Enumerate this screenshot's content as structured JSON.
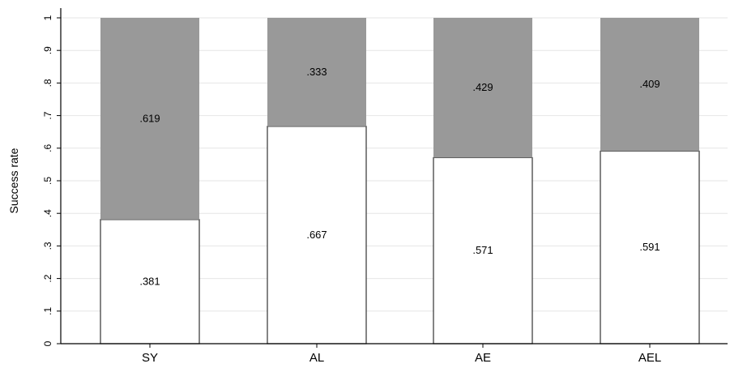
{
  "chart_data": {
    "type": "bar",
    "stacked": true,
    "categories": [
      "SY",
      "AL",
      "AE",
      "AEL"
    ],
    "series": [
      {
        "values": [
          0.381,
          0.667,
          0.571,
          0.591
        ],
        "color": "#ffffff"
      },
      {
        "values": [
          0.619,
          0.333,
          0.429,
          0.409
        ],
        "color": "#999999"
      }
    ],
    "data_labels": [
      [
        ".381",
        ".667",
        ".571",
        ".591"
      ],
      [
        ".619",
        ".333",
        ".429",
        ".409"
      ]
    ],
    "title": "",
    "xlabel": "",
    "ylabel": "Success rate",
    "ylim": [
      0,
      1
    ],
    "yticks": [
      0,
      0.1,
      0.2,
      0.3,
      0.4,
      0.5,
      0.6,
      0.7,
      0.8,
      0.9,
      1
    ],
    "ytick_labels": [
      "0",
      ".1",
      ".2",
      ".3",
      ".4",
      ".5",
      ".6",
      ".7",
      ".8",
      ".9",
      "1"
    ],
    "grid": true,
    "gridline_color": "#e6e6e6",
    "bar_outline_color": "#333333"
  }
}
